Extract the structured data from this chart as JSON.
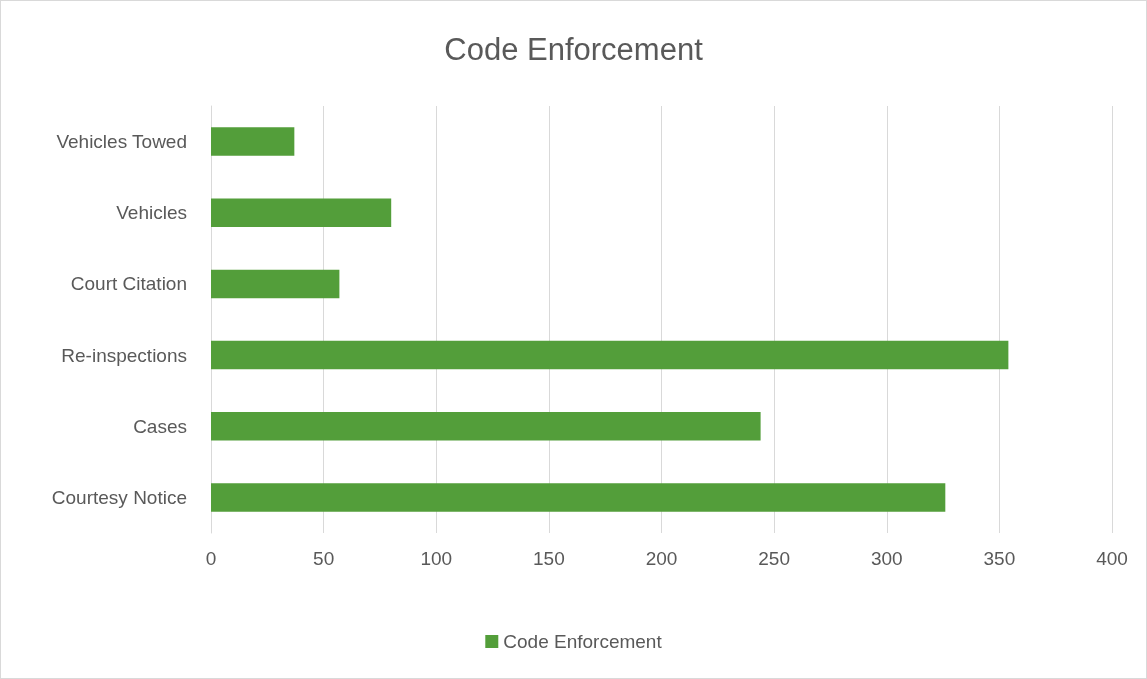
{
  "chart_data": {
    "type": "bar",
    "orientation": "horizontal",
    "title": "Code Enforcement",
    "categories": [
      "Vehicles Towed",
      "Vehicles",
      "Court Citation",
      "Re-inspections",
      "Cases",
      "Courtesy Notice"
    ],
    "series": [
      {
        "name": "Code Enforcement",
        "color": "#539e3a",
        "values": [
          37,
          80,
          57,
          354,
          244,
          326
        ]
      }
    ],
    "xlim": [
      0,
      400
    ],
    "xticks": [
      0,
      50,
      100,
      150,
      200,
      250,
      300,
      350,
      400
    ],
    "grid": "x",
    "legend": "bottom"
  }
}
